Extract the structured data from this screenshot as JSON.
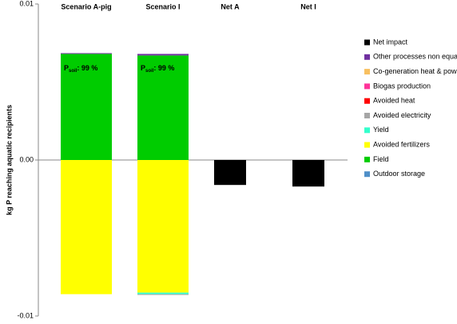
{
  "chart_data": {
    "type": "bar",
    "stacked": true,
    "y_label": "kg P reaching aquatic recipients",
    "categories": [
      "Scenario A-pig",
      "Scenario  I",
      "Net A",
      "Net I"
    ],
    "ylim": [
      -0.01,
      0.01
    ],
    "yticks": [
      -0.01,
      {
        "value": 0,
        "label": "0.00"
      },
      0.01
    ],
    "series": [
      {
        "name": "Net impact",
        "color": "#000000",
        "values": [
          null,
          null,
          -0.0016,
          -0.0017
        ]
      },
      {
        "name": "Other processes non equal",
        "color": "#7030a0",
        "values": [
          5e-05,
          0.0001,
          null,
          null
        ]
      },
      {
        "name": "Co-generation heat & power",
        "color": "#f8c060",
        "values": [
          null,
          null,
          null,
          null
        ]
      },
      {
        "name": "Biogas production",
        "color": "#ff3399",
        "values": [
          null,
          null,
          null,
          null
        ]
      },
      {
        "name": "Avoided heat",
        "color": "#ff0000",
        "values": [
          null,
          null,
          null,
          null
        ]
      },
      {
        "name": "Avoided electricity",
        "color": "#a6a6a6",
        "values": [
          null,
          -5e-05,
          null,
          null
        ]
      },
      {
        "name": "Yield",
        "color": "#33ffcc",
        "values": [
          null,
          -0.0001,
          null,
          null
        ]
      },
      {
        "name": "Avoided fertilizers",
        "color": "#ffff00",
        "values": [
          -0.0086,
          -0.0085,
          null,
          null
        ]
      },
      {
        "name": "Field",
        "color": "#00cc00",
        "values": [
          0.0068,
          0.0067,
          null,
          null
        ]
      },
      {
        "name": "Outdoor storage",
        "color": "#4f8fc8",
        "values": [
          null,
          null,
          null,
          null
        ]
      }
    ],
    "annotations": [
      {
        "main": "P",
        "sub": "soil",
        "tail": ": 99 %"
      },
      {
        "main": "P",
        "sub": "soil",
        "tail": ": 99 %"
      }
    ]
  }
}
